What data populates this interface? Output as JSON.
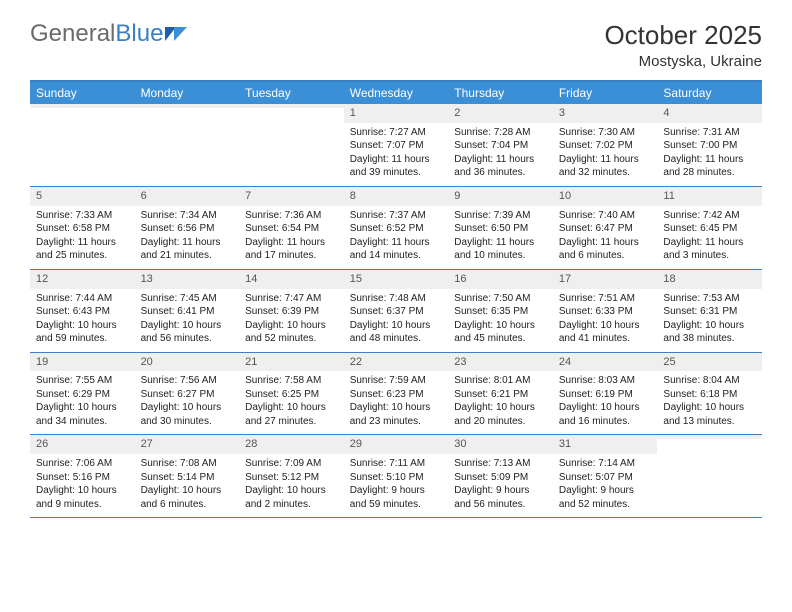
{
  "logo": {
    "text1": "General",
    "text2": "Blue"
  },
  "header": {
    "title": "October 2025",
    "location": "Mostyska, Ukraine"
  },
  "colors": {
    "header_bar": "#3b8fd6",
    "rule": "#3b7fc4",
    "daynum_bg": "#efefef",
    "text": "#222222",
    "logo_gray": "#6b6b6b"
  },
  "dayNames": [
    "Sunday",
    "Monday",
    "Tuesday",
    "Wednesday",
    "Thursday",
    "Friday",
    "Saturday"
  ],
  "weeks": [
    [
      {
        "n": "",
        "sr": "",
        "ss": "",
        "dl": ""
      },
      {
        "n": "",
        "sr": "",
        "ss": "",
        "dl": ""
      },
      {
        "n": "",
        "sr": "",
        "ss": "",
        "dl": ""
      },
      {
        "n": "1",
        "sr": "7:27 AM",
        "ss": "7:07 PM",
        "dl": "11 hours and 39 minutes."
      },
      {
        "n": "2",
        "sr": "7:28 AM",
        "ss": "7:04 PM",
        "dl": "11 hours and 36 minutes."
      },
      {
        "n": "3",
        "sr": "7:30 AM",
        "ss": "7:02 PM",
        "dl": "11 hours and 32 minutes."
      },
      {
        "n": "4",
        "sr": "7:31 AM",
        "ss": "7:00 PM",
        "dl": "11 hours and 28 minutes."
      }
    ],
    [
      {
        "n": "5",
        "sr": "7:33 AM",
        "ss": "6:58 PM",
        "dl": "11 hours and 25 minutes."
      },
      {
        "n": "6",
        "sr": "7:34 AM",
        "ss": "6:56 PM",
        "dl": "11 hours and 21 minutes."
      },
      {
        "n": "7",
        "sr": "7:36 AM",
        "ss": "6:54 PM",
        "dl": "11 hours and 17 minutes."
      },
      {
        "n": "8",
        "sr": "7:37 AM",
        "ss": "6:52 PM",
        "dl": "11 hours and 14 minutes."
      },
      {
        "n": "9",
        "sr": "7:39 AM",
        "ss": "6:50 PM",
        "dl": "11 hours and 10 minutes."
      },
      {
        "n": "10",
        "sr": "7:40 AM",
        "ss": "6:47 PM",
        "dl": "11 hours and 6 minutes."
      },
      {
        "n": "11",
        "sr": "7:42 AM",
        "ss": "6:45 PM",
        "dl": "11 hours and 3 minutes."
      }
    ],
    [
      {
        "n": "12",
        "sr": "7:44 AM",
        "ss": "6:43 PM",
        "dl": "10 hours and 59 minutes."
      },
      {
        "n": "13",
        "sr": "7:45 AM",
        "ss": "6:41 PM",
        "dl": "10 hours and 56 minutes."
      },
      {
        "n": "14",
        "sr": "7:47 AM",
        "ss": "6:39 PM",
        "dl": "10 hours and 52 minutes."
      },
      {
        "n": "15",
        "sr": "7:48 AM",
        "ss": "6:37 PM",
        "dl": "10 hours and 48 minutes."
      },
      {
        "n": "16",
        "sr": "7:50 AM",
        "ss": "6:35 PM",
        "dl": "10 hours and 45 minutes."
      },
      {
        "n": "17",
        "sr": "7:51 AM",
        "ss": "6:33 PM",
        "dl": "10 hours and 41 minutes."
      },
      {
        "n": "18",
        "sr": "7:53 AM",
        "ss": "6:31 PM",
        "dl": "10 hours and 38 minutes."
      }
    ],
    [
      {
        "n": "19",
        "sr": "7:55 AM",
        "ss": "6:29 PM",
        "dl": "10 hours and 34 minutes."
      },
      {
        "n": "20",
        "sr": "7:56 AM",
        "ss": "6:27 PM",
        "dl": "10 hours and 30 minutes."
      },
      {
        "n": "21",
        "sr": "7:58 AM",
        "ss": "6:25 PM",
        "dl": "10 hours and 27 minutes."
      },
      {
        "n": "22",
        "sr": "7:59 AM",
        "ss": "6:23 PM",
        "dl": "10 hours and 23 minutes."
      },
      {
        "n": "23",
        "sr": "8:01 AM",
        "ss": "6:21 PM",
        "dl": "10 hours and 20 minutes."
      },
      {
        "n": "24",
        "sr": "8:03 AM",
        "ss": "6:19 PM",
        "dl": "10 hours and 16 minutes."
      },
      {
        "n": "25",
        "sr": "8:04 AM",
        "ss": "6:18 PM",
        "dl": "10 hours and 13 minutes."
      }
    ],
    [
      {
        "n": "26",
        "sr": "7:06 AM",
        "ss": "5:16 PM",
        "dl": "10 hours and 9 minutes."
      },
      {
        "n": "27",
        "sr": "7:08 AM",
        "ss": "5:14 PM",
        "dl": "10 hours and 6 minutes."
      },
      {
        "n": "28",
        "sr": "7:09 AM",
        "ss": "5:12 PM",
        "dl": "10 hours and 2 minutes."
      },
      {
        "n": "29",
        "sr": "7:11 AM",
        "ss": "5:10 PM",
        "dl": "9 hours and 59 minutes."
      },
      {
        "n": "30",
        "sr": "7:13 AM",
        "ss": "5:09 PM",
        "dl": "9 hours and 56 minutes."
      },
      {
        "n": "31",
        "sr": "7:14 AM",
        "ss": "5:07 PM",
        "dl": "9 hours and 52 minutes."
      },
      {
        "n": "",
        "sr": "",
        "ss": "",
        "dl": ""
      }
    ]
  ],
  "labels": {
    "sunrise": "Sunrise: ",
    "sunset": "Sunset: ",
    "daylight": "Daylight: "
  }
}
